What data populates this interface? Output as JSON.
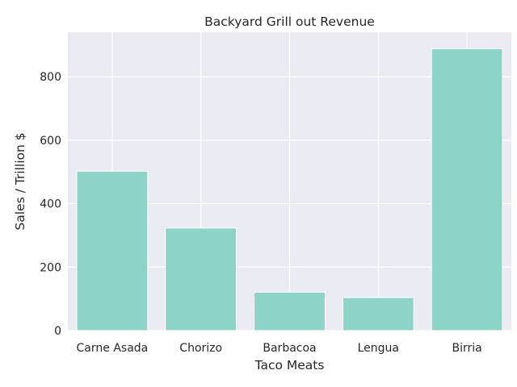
{
  "chart_data": {
    "type": "bar",
    "title": "Backyard Grill out Revenue",
    "xlabel": "Taco Meats",
    "ylabel": "Sales / Trillion $",
    "categories": [
      "Carne Asada",
      "Chorizo",
      "Barbacoa",
      "Lengua",
      "Birria"
    ],
    "values": [
      502,
      323,
      121,
      104,
      888
    ],
    "ylim": [
      0,
      940
    ],
    "yticks": [
      0,
      200,
      400,
      600,
      800
    ],
    "grid": true,
    "legend": "none",
    "colors": {
      "bar": "#8dd3c7",
      "background": "#eaeaf2",
      "grid": "#ffffff",
      "text": "#262626"
    }
  }
}
